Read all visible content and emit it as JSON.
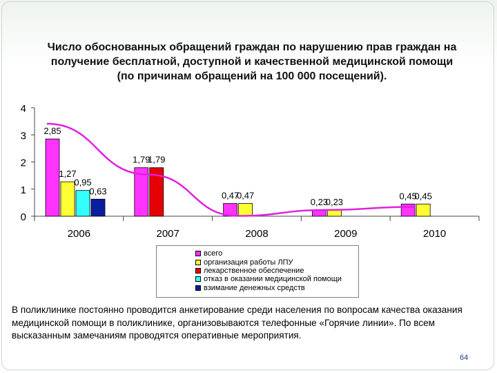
{
  "title_lines": [
    "Число обоснованных обращений граждан по нарушению прав граждан на",
    "получение бесплатной, доступной и качественной медицинской помощи",
    "(по причинам обращений на 100 000 посещений)."
  ],
  "chart_data": {
    "type": "bar",
    "categories": [
      "2006",
      "2007",
      "2008",
      "2009",
      "2010"
    ],
    "series": [
      {
        "name": "всего",
        "color": "#ff33ff",
        "values": [
          2.85,
          1.79,
          0.47,
          0.23,
          0.45
        ],
        "labels": [
          "2,85",
          "1,79",
          "0,47",
          "0,23",
          "0,45"
        ]
      },
      {
        "name": "организация работы ЛПУ",
        "color": "#ffff33",
        "values": [
          1.27,
          null,
          0.47,
          0.23,
          0.45
        ],
        "labels": [
          "1,27",
          "",
          "0,47",
          "0,23",
          "0,45"
        ]
      },
      {
        "name": "лекарственное обеспечение",
        "color": "#e60000",
        "values": [
          null,
          1.79,
          null,
          null,
          null
        ],
        "labels": [
          "",
          "1,79",
          "",
          "",
          ""
        ]
      },
      {
        "name": "отказ в оказании медицинской помощи",
        "color": "#33ffff",
        "values": [
          0.95,
          null,
          null,
          null,
          null
        ],
        "labels": [
          "0,95",
          "",
          "",
          "",
          ""
        ]
      },
      {
        "name": "взимание денежных средств",
        "color": "#0a1ea0",
        "values": [
          0.63,
          null,
          null,
          null,
          null
        ],
        "labels": [
          "0,63",
          "",
          "",
          "",
          ""
        ]
      }
    ],
    "y_ticks": [
      "0",
      "1",
      "2",
      "3",
      "4"
    ],
    "ylim": [
      0,
      4
    ],
    "trendline": {
      "color": "#e020e0",
      "based_on": "всего"
    },
    "grid": false,
    "legend_position": "bottom"
  },
  "note": "В поликлинике постоянно проводится анкетирование среди населения по вопросам качества оказания медицинской помощи в поликлинике, организовываются телефонные «Горячие линии». По всем высказанным замечаниям проводятся оперативные мероприятия.",
  "page_number": "64"
}
